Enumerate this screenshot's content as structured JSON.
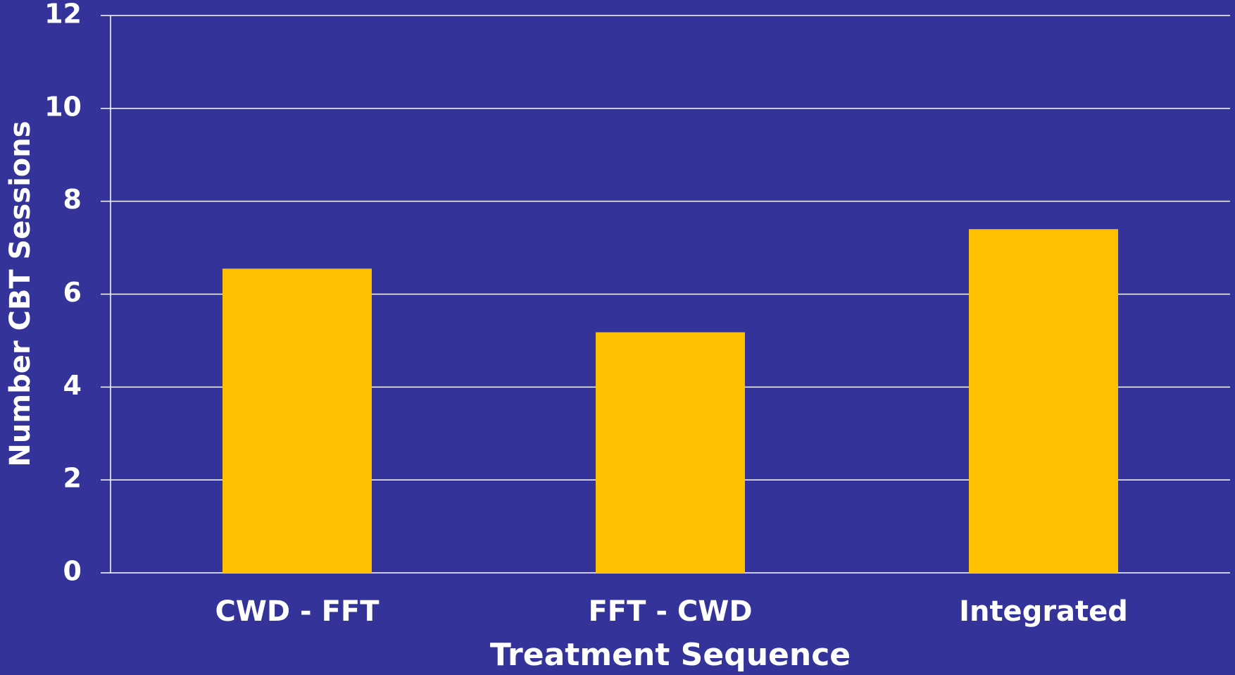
{
  "chart_data": {
    "type": "bar",
    "x_label": "Treatment Sequence",
    "y_label": "Number CBT Sessions",
    "categories": [
      "CWD - FFT",
      "FFT - CWD",
      "Integrated"
    ],
    "values": [
      6.55,
      5.18,
      7.4
    ],
    "color": "#ffc000",
    "ylim": [
      0,
      12
    ],
    "yticks": [
      0,
      2,
      4,
      6,
      8,
      10,
      12
    ],
    "grid": true
  }
}
